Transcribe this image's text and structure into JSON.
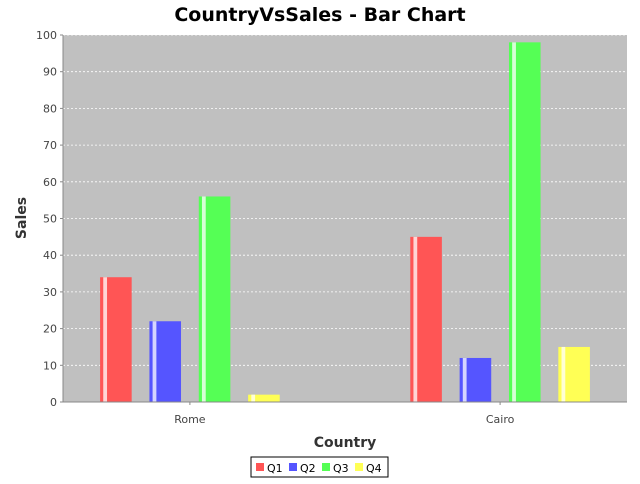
{
  "chart_data": {
    "type": "bar",
    "title": "CountryVsSales - Bar Chart",
    "xlabel": "Country",
    "ylabel": "Sales",
    "categories": [
      "Rome",
      "Cairo"
    ],
    "series": [
      {
        "name": "Q1",
        "color": "#ff5555",
        "values": [
          34,
          45
        ]
      },
      {
        "name": "Q2",
        "color": "#5555ff",
        "values": [
          22,
          12
        ]
      },
      {
        "name": "Q3",
        "color": "#55ff55",
        "values": [
          56,
          98
        ]
      },
      {
        "name": "Q4",
        "color": "#ffff55",
        "values": [
          2,
          15
        ]
      }
    ],
    "ylim": [
      0,
      100
    ],
    "yticks": [
      0,
      10,
      20,
      30,
      40,
      50,
      60,
      70,
      80,
      90,
      100
    ],
    "grid": true,
    "plot_background": "#c0c0c0",
    "legend_position": "bottom"
  }
}
